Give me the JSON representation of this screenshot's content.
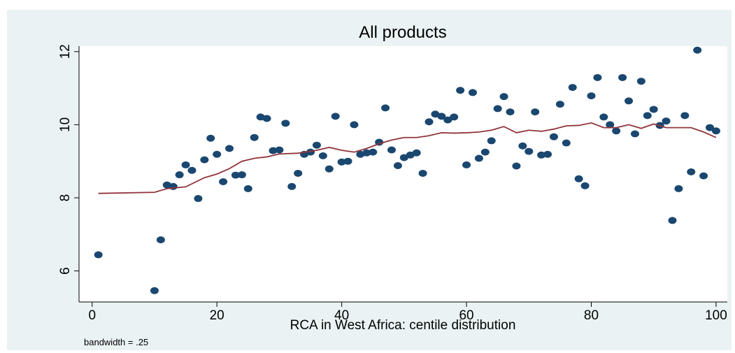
{
  "chart_data": {
    "type": "scatter",
    "title": "All products",
    "xlabel": "RCA in West Africa: centile distribution",
    "note": "bandwidth = .25",
    "xlim": [
      -2.1,
      101.8
    ],
    "ylim": [
      5.15,
      12.15
    ],
    "xticks": [
      0,
      20,
      40,
      60,
      80,
      100
    ],
    "yticks": [
      6,
      8,
      10,
      12
    ],
    "grid": false,
    "series": [
      {
        "type": "scatter",
        "color": "#1a476f",
        "x": [
          1,
          10,
          11,
          12,
          13,
          14,
          15,
          16,
          17,
          18,
          19,
          20,
          21,
          22,
          23,
          24,
          25,
          26,
          27,
          28,
          29,
          30,
          31,
          32,
          33,
          34,
          35,
          36,
          37,
          38,
          39,
          40,
          41,
          42,
          43,
          44,
          45,
          46,
          47,
          48,
          49,
          50,
          51,
          52,
          53,
          54,
          55,
          56,
          57,
          58,
          59,
          60,
          61,
          62,
          63,
          64,
          65,
          66,
          67,
          68,
          69,
          70,
          71,
          72,
          73,
          74,
          75,
          76,
          77,
          78,
          79,
          80,
          81,
          82,
          83,
          84,
          85,
          86,
          87,
          88,
          89,
          90,
          91,
          92,
          93,
          94,
          95,
          96,
          97,
          98,
          99,
          100
        ],
        "values": [
          6.44,
          5.46,
          6.85,
          8.35,
          8.31,
          8.63,
          8.9,
          8.75,
          7.98,
          9.04,
          9.63,
          9.19,
          8.44,
          9.35,
          8.62,
          8.63,
          8.25,
          9.65,
          10.21,
          10.17,
          9.29,
          9.31,
          10.04,
          8.31,
          8.67,
          9.19,
          9.25,
          9.44,
          9.15,
          8.79,
          10.23,
          8.98,
          9.0,
          10.0,
          9.19,
          9.23,
          9.25,
          9.52,
          10.46,
          9.31,
          8.88,
          9.1,
          9.17,
          9.23,
          8.67,
          10.08,
          10.29,
          10.23,
          10.13,
          10.21,
          10.94,
          8.9,
          10.88,
          9.08,
          9.25,
          9.56,
          10.44,
          10.77,
          10.35,
          8.87,
          9.42,
          9.27,
          10.35,
          9.17,
          9.19,
          9.67,
          10.56,
          9.5,
          11.02,
          8.52,
          8.33,
          10.79,
          11.29,
          10.21,
          10.0,
          9.83,
          11.29,
          10.65,
          9.75,
          11.19,
          10.25,
          10.42,
          9.98,
          10.1,
          7.38,
          8.25,
          10.25,
          8.71,
          12.04,
          8.6,
          9.92,
          9.83
        ]
      },
      {
        "type": "line",
        "color": "#90353b",
        "x": [
          1,
          10,
          12,
          15,
          18,
          20,
          22,
          24,
          26,
          28,
          30,
          33,
          36,
          38,
          40,
          42,
          44,
          46,
          48,
          50,
          52,
          54,
          56,
          58,
          60,
          62,
          64,
          66,
          68,
          70,
          72,
          74,
          76,
          78,
          80,
          82,
          84,
          86,
          88,
          90,
          92,
          94,
          96,
          98,
          100
        ],
        "values": [
          8.12,
          8.15,
          8.25,
          8.3,
          8.55,
          8.65,
          8.8,
          9.0,
          9.08,
          9.12,
          9.2,
          9.22,
          9.3,
          9.38,
          9.3,
          9.25,
          9.35,
          9.48,
          9.58,
          9.65,
          9.65,
          9.7,
          9.78,
          9.77,
          9.78,
          9.8,
          9.85,
          9.95,
          9.78,
          9.85,
          9.82,
          9.88,
          9.97,
          9.98,
          10.05,
          9.92,
          9.92,
          10.0,
          9.9,
          10.02,
          9.92,
          9.92,
          9.92,
          9.8,
          9.65
        ]
      }
    ]
  }
}
